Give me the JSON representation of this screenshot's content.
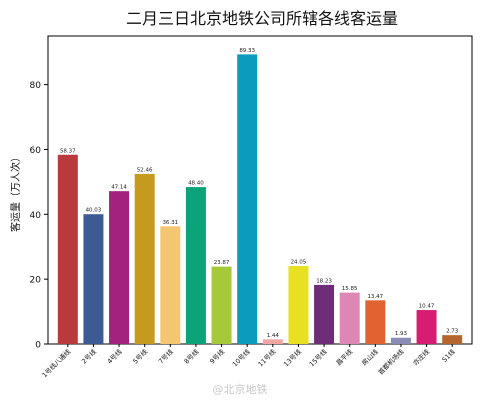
{
  "chart_data": {
    "type": "bar",
    "title": "二月三日北京地铁公司所辖各线客运量",
    "xlabel": "",
    "ylabel": "客运量（万人次）",
    "ylim": [
      0,
      95
    ],
    "yticks": [
      0,
      20,
      40,
      60,
      80
    ],
    "grid": false,
    "legend": "none",
    "categories": [
      "1号线八通线",
      "2号线",
      "4号线",
      "5号线",
      "7号线",
      "8号线",
      "9号线",
      "10号线",
      "11号线",
      "13号线",
      "15号线",
      "昌平线",
      "房山线",
      "首都机场线",
      "亦庄线",
      "S1线"
    ],
    "values": [
      58.37,
      40.03,
      47.14,
      52.46,
      36.31,
      48.4,
      23.87,
      89.33,
      1.44,
      24.05,
      18.23,
      15.85,
      13.47,
      1.93,
      10.47,
      2.73
    ],
    "value_labels": [
      "58.37",
      "40.03",
      "47.14",
      "52.46",
      "36.31",
      "48.40",
      "23.87",
      "89.33",
      "1.44",
      "24.05",
      "18.23",
      "15.85",
      "13.47",
      "1.93",
      "10.47",
      "2.73"
    ],
    "colors": [
      "#b9393c",
      "#3c5a93",
      "#a3227e",
      "#c59a1e",
      "#f5c672",
      "#0aa37a",
      "#a6c93a",
      "#0a9bbd",
      "#f2a7a3",
      "#e7e023",
      "#6e2d78",
      "#dd87b5",
      "#e06331",
      "#8a8cb5",
      "#d61d72",
      "#b3672e"
    ]
  },
  "watermark": "@北京地铁"
}
